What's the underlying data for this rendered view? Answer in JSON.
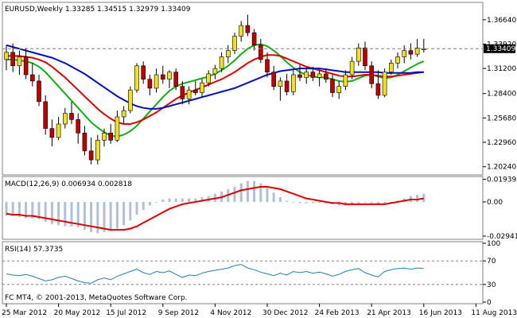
{
  "colors": {
    "background": "#ffffff",
    "border": "#808080",
    "candle_up": "#f0e020",
    "candle_down": "#c00000",
    "wick": "#000000",
    "ma_fast": "#10b010",
    "ma_mid": "#e00000",
    "ma_slow": "#0010c0",
    "macd_hist": "#b0c0d8",
    "macd_signal": "#e00000",
    "rsi_line": "#2080c0",
    "level_line": "#808080",
    "price_tag_bg": "#000000",
    "price_tag_text": "#ffffff"
  },
  "chart_data": [
    {
      "type": "candlestick",
      "panel": "price",
      "title": "EURUSD,Weekly  1.33285 1.34515 1.32979 1.33409",
      "current_price_label": "1.33409",
      "current_price": 1.33409,
      "ylim": [
        1.195,
        1.384
      ],
      "y_ticks": [
        "1.36640",
        "1.33920",
        "1.31200",
        "1.28400",
        "1.25680",
        "1.22960",
        "1.20240"
      ],
      "y_tick_values": [
        1.3664,
        1.3392,
        1.312,
        1.284,
        1.2568,
        1.2296,
        1.2024
      ],
      "candles": [
        {
          "o": 1.322,
          "h": 1.338,
          "l": 1.31,
          "c": 1.33
        },
        {
          "o": 1.33,
          "h": 1.34,
          "l": 1.308,
          "c": 1.315
        },
        {
          "o": 1.315,
          "h": 1.332,
          "l": 1.305,
          "c": 1.325
        },
        {
          "o": 1.325,
          "h": 1.335,
          "l": 1.3,
          "c": 1.305
        },
        {
          "o": 1.305,
          "h": 1.318,
          "l": 1.292,
          "c": 1.298
        },
        {
          "o": 1.298,
          "h": 1.305,
          "l": 1.27,
          "c": 1.275
        },
        {
          "o": 1.275,
          "h": 1.282,
          "l": 1.238,
          "c": 1.245
        },
        {
          "o": 1.245,
          "h": 1.255,
          "l": 1.225,
          "c": 1.235
        },
        {
          "o": 1.235,
          "h": 1.258,
          "l": 1.232,
          "c": 1.25
        },
        {
          "o": 1.25,
          "h": 1.268,
          "l": 1.245,
          "c": 1.262
        },
        {
          "o": 1.262,
          "h": 1.275,
          "l": 1.25,
          "c": 1.255
        },
        {
          "o": 1.255,
          "h": 1.262,
          "l": 1.228,
          "c": 1.24
        },
        {
          "o": 1.24,
          "h": 1.248,
          "l": 1.215,
          "c": 1.22
        },
        {
          "o": 1.22,
          "h": 1.235,
          "l": 1.205,
          "c": 1.21
        },
        {
          "o": 1.21,
          "h": 1.238,
          "l": 1.205,
          "c": 1.232
        },
        {
          "o": 1.232,
          "h": 1.245,
          "l": 1.225,
          "c": 1.24
        },
        {
          "o": 1.24,
          "h": 1.25,
          "l": 1.228,
          "c": 1.232
        },
        {
          "o": 1.232,
          "h": 1.265,
          "l": 1.23,
          "c": 1.258
        },
        {
          "o": 1.258,
          "h": 1.27,
          "l": 1.25,
          "c": 1.265
        },
        {
          "o": 1.265,
          "h": 1.292,
          "l": 1.262,
          "c": 1.288
        },
        {
          "o": 1.288,
          "h": 1.318,
          "l": 1.285,
          "c": 1.315
        },
        {
          "o": 1.315,
          "h": 1.32,
          "l": 1.295,
          "c": 1.3
        },
        {
          "o": 1.3,
          "h": 1.305,
          "l": 1.282,
          "c": 1.29
        },
        {
          "o": 1.29,
          "h": 1.312,
          "l": 1.285,
          "c": 1.305
        },
        {
          "o": 1.305,
          "h": 1.315,
          "l": 1.295,
          "c": 1.3
        },
        {
          "o": 1.3,
          "h": 1.31,
          "l": 1.29,
          "c": 1.308
        },
        {
          "o": 1.308,
          "h": 1.312,
          "l": 1.288,
          "c": 1.292
        },
        {
          "o": 1.292,
          "h": 1.298,
          "l": 1.272,
          "c": 1.278
        },
        {
          "o": 1.278,
          "h": 1.292,
          "l": 1.272,
          "c": 1.288
        },
        {
          "o": 1.288,
          "h": 1.298,
          "l": 1.282,
          "c": 1.285
        },
        {
          "o": 1.285,
          "h": 1.3,
          "l": 1.28,
          "c": 1.296
        },
        {
          "o": 1.296,
          "h": 1.31,
          "l": 1.292,
          "c": 1.306
        },
        {
          "o": 1.306,
          "h": 1.316,
          "l": 1.3,
          "c": 1.312
        },
        {
          "o": 1.312,
          "h": 1.33,
          "l": 1.308,
          "c": 1.325
        },
        {
          "o": 1.325,
          "h": 1.338,
          "l": 1.318,
          "c": 1.332
        },
        {
          "o": 1.332,
          "h": 1.352,
          "l": 1.328,
          "c": 1.348
        },
        {
          "o": 1.348,
          "h": 1.365,
          "l": 1.342,
          "c": 1.36
        },
        {
          "o": 1.36,
          "h": 1.372,
          "l": 1.348,
          "c": 1.352
        },
        {
          "o": 1.352,
          "h": 1.356,
          "l": 1.332,
          "c": 1.338
        },
        {
          "o": 1.338,
          "h": 1.345,
          "l": 1.318,
          "c": 1.322
        },
        {
          "o": 1.322,
          "h": 1.33,
          "l": 1.302,
          "c": 1.308
        },
        {
          "o": 1.308,
          "h": 1.315,
          "l": 1.288,
          "c": 1.292
        },
        {
          "o": 1.292,
          "h": 1.302,
          "l": 1.276,
          "c": 1.298
        },
        {
          "o": 1.298,
          "h": 1.306,
          "l": 1.282,
          "c": 1.286
        },
        {
          "o": 1.286,
          "h": 1.31,
          "l": 1.282,
          "c": 1.305
        },
        {
          "o": 1.305,
          "h": 1.316,
          "l": 1.298,
          "c": 1.302
        },
        {
          "o": 1.302,
          "h": 1.312,
          "l": 1.295,
          "c": 1.308
        },
        {
          "o": 1.308,
          "h": 1.314,
          "l": 1.298,
          "c": 1.302
        },
        {
          "o": 1.302,
          "h": 1.31,
          "l": 1.292,
          "c": 1.306
        },
        {
          "o": 1.306,
          "h": 1.312,
          "l": 1.296,
          "c": 1.3
        },
        {
          "o": 1.3,
          "h": 1.305,
          "l": 1.28,
          "c": 1.285
        },
        {
          "o": 1.285,
          "h": 1.298,
          "l": 1.278,
          "c": 1.292
        },
        {
          "o": 1.292,
          "h": 1.31,
          "l": 1.288,
          "c": 1.305
        },
        {
          "o": 1.305,
          "h": 1.325,
          "l": 1.3,
          "c": 1.32
        },
        {
          "o": 1.32,
          "h": 1.34,
          "l": 1.315,
          "c": 1.335
        },
        {
          "o": 1.335,
          "h": 1.342,
          "l": 1.31,
          "c": 1.315
        },
        {
          "o": 1.315,
          "h": 1.32,
          "l": 1.29,
          "c": 1.295
        },
        {
          "o": 1.295,
          "h": 1.31,
          "l": 1.278,
          "c": 1.282
        },
        {
          "o": 1.282,
          "h": 1.312,
          "l": 1.28,
          "c": 1.308
        },
        {
          "o": 1.308,
          "h": 1.322,
          "l": 1.305,
          "c": 1.318
        },
        {
          "o": 1.318,
          "h": 1.33,
          "l": 1.312,
          "c": 1.325
        },
        {
          "o": 1.325,
          "h": 1.338,
          "l": 1.318,
          "c": 1.332
        },
        {
          "o": 1.332,
          "h": 1.34,
          "l": 1.322,
          "c": 1.328
        },
        {
          "o": 1.328,
          "h": 1.345,
          "l": 1.325,
          "c": 1.335
        },
        {
          "o": 1.33285,
          "h": 1.34515,
          "l": 1.32979,
          "c": 1.33409
        }
      ],
      "series": [
        {
          "color_key": "ma_fast",
          "values": [
            1.322,
            1.322,
            1.321,
            1.32,
            1.318,
            1.314,
            1.308,
            1.3,
            1.292,
            1.284,
            1.276,
            1.268,
            1.26,
            1.252,
            1.246,
            1.241,
            1.237,
            1.236,
            1.238,
            1.242,
            1.248,
            1.256,
            1.264,
            1.272,
            1.28,
            1.287,
            1.292,
            1.295,
            1.297,
            1.299,
            1.301,
            1.303,
            1.306,
            1.31,
            1.315,
            1.321,
            1.328,
            1.334,
            1.338,
            1.339,
            1.337,
            1.332,
            1.326,
            1.319,
            1.313,
            1.308,
            1.305,
            1.303,
            1.302,
            1.302,
            1.3,
            1.298,
            1.297,
            1.298,
            1.301,
            1.304,
            1.305,
            1.303,
            1.301,
            1.302,
            1.305,
            1.309,
            1.313,
            1.317,
            1.32
          ]
        },
        {
          "color_key": "ma_mid",
          "values": [
            1.326,
            1.326,
            1.326,
            1.325,
            1.324,
            1.322,
            1.319,
            1.314,
            1.308,
            1.302,
            1.295,
            1.288,
            1.281,
            1.274,
            1.267,
            1.261,
            1.256,
            1.252,
            1.25,
            1.25,
            1.252,
            1.255,
            1.259,
            1.263,
            1.268,
            1.273,
            1.278,
            1.282,
            1.285,
            1.288,
            1.291,
            1.294,
            1.297,
            1.3,
            1.304,
            1.308,
            1.313,
            1.318,
            1.322,
            1.325,
            1.327,
            1.327,
            1.326,
            1.323,
            1.32,
            1.317,
            1.314,
            1.312,
            1.31,
            1.308,
            1.306,
            1.304,
            1.303,
            1.303,
            1.304,
            1.305,
            1.305,
            1.304,
            1.303,
            1.303,
            1.304,
            1.305,
            1.306,
            1.307,
            1.308
          ]
        },
        {
          "color_key": "ma_slow",
          "values": [
            1.338,
            1.336,
            1.334,
            1.332,
            1.33,
            1.328,
            1.326,
            1.324,
            1.321,
            1.318,
            1.314,
            1.31,
            1.306,
            1.301,
            1.296,
            1.291,
            1.286,
            1.281,
            1.277,
            1.273,
            1.27,
            1.268,
            1.267,
            1.267,
            1.268,
            1.27,
            1.272,
            1.274,
            1.276,
            1.278,
            1.28,
            1.282,
            1.284,
            1.286,
            1.288,
            1.29,
            1.293,
            1.296,
            1.299,
            1.302,
            1.305,
            1.307,
            1.309,
            1.31,
            1.311,
            1.312,
            1.312,
            1.312,
            1.312,
            1.311,
            1.31,
            1.309,
            1.308,
            1.308,
            1.308,
            1.308,
            1.308,
            1.308,
            1.307,
            1.307,
            1.307,
            1.307,
            1.307,
            1.308,
            1.308
          ]
        }
      ],
      "x_tick_labels": [
        "25 Mar 2012",
        "20 May 2012",
        "15 Jul 2012",
        "9 Sep 2012",
        "4 Nov 2012",
        "30 Dec 2012",
        "24 Feb 2013",
        "21 Apr 2013",
        "16 Jun 2013",
        "11 Aug 2013"
      ],
      "x_tick_index": [
        0,
        8,
        16,
        24,
        32,
        40,
        48,
        56,
        64,
        72
      ]
    },
    {
      "type": "bar",
      "panel": "macd",
      "title": "MACD(12,26,9) 0.006934 0.002818",
      "ylim": [
        -0.0308,
        0.0205
      ],
      "y_ticks": [
        "0.019394",
        "0.00",
        "-0.02941"
      ],
      "y_tick_values": [
        0.019394,
        0.0,
        -0.02941
      ],
      "values": [
        -0.012,
        -0.012,
        -0.013,
        -0.014,
        -0.014,
        -0.015,
        -0.017,
        -0.019,
        -0.02,
        -0.021,
        -0.021,
        -0.022,
        -0.024,
        -0.026,
        -0.027,
        -0.026,
        -0.025,
        -0.023,
        -0.02,
        -0.016,
        -0.011,
        -0.007,
        -0.003,
        0.0,
        0.002,
        0.003,
        0.003,
        0.003,
        0.003,
        0.003,
        0.004,
        0.005,
        0.007,
        0.009,
        0.011,
        0.013,
        0.016,
        0.018,
        0.018,
        0.016,
        0.012,
        0.008,
        0.004,
        0.001,
        0.0,
        -0.001,
        -0.001,
        -0.001,
        -0.001,
        -0.001,
        -0.002,
        -0.003,
        -0.003,
        -0.002,
        -0.001,
        0.0,
        -0.001,
        -0.002,
        -0.002,
        -0.001,
        0.001,
        0.003,
        0.005,
        0.006,
        0.007
      ],
      "series": [
        {
          "color_key": "macd_signal",
          "values": [
            -0.01,
            -0.011,
            -0.011,
            -0.012,
            -0.012,
            -0.013,
            -0.014,
            -0.015,
            -0.016,
            -0.017,
            -0.018,
            -0.019,
            -0.02,
            -0.021,
            -0.022,
            -0.023,
            -0.024,
            -0.024,
            -0.024,
            -0.023,
            -0.021,
            -0.018,
            -0.015,
            -0.012,
            -0.009,
            -0.006,
            -0.004,
            -0.002,
            -0.001,
            0.0,
            0.001,
            0.002,
            0.003,
            0.004,
            0.006,
            0.008,
            0.01,
            0.011,
            0.012,
            0.013,
            0.013,
            0.012,
            0.011,
            0.009,
            0.007,
            0.005,
            0.003,
            0.002,
            0.001,
            0.0,
            -0.001,
            -0.001,
            -0.002,
            -0.002,
            -0.002,
            -0.002,
            -0.002,
            -0.002,
            -0.002,
            -0.001,
            0.0,
            0.001,
            0.002,
            0.002,
            0.003
          ]
        }
      ]
    },
    {
      "type": "line",
      "panel": "rsi",
      "title": "RSI(14) 57.3735",
      "ylim": [
        0,
        100
      ],
      "y_ticks": [
        "100",
        "70",
        "30",
        "0"
      ],
      "y_tick_values": [
        100,
        70,
        30,
        0
      ],
      "levels": [
        70,
        30
      ],
      "series": [
        {
          "color_key": "rsi_line",
          "values": [
            48,
            46,
            45,
            47,
            44,
            40,
            36,
            38,
            42,
            44,
            40,
            36,
            33,
            32,
            38,
            41,
            38,
            44,
            48,
            52,
            56,
            50,
            47,
            52,
            50,
            53,
            47,
            42,
            46,
            45,
            49,
            52,
            54,
            56,
            58,
            62,
            64,
            58,
            55,
            51,
            48,
            45,
            49,
            46,
            52,
            50,
            52,
            49,
            51,
            48,
            44,
            47,
            52,
            55,
            57,
            50,
            46,
            43,
            52,
            55,
            57,
            58,
            56,
            58,
            57
          ]
        }
      ]
    }
  ],
  "footer_text": "FC MT4, © 2001-2013, MetaQuotes Software Corp."
}
